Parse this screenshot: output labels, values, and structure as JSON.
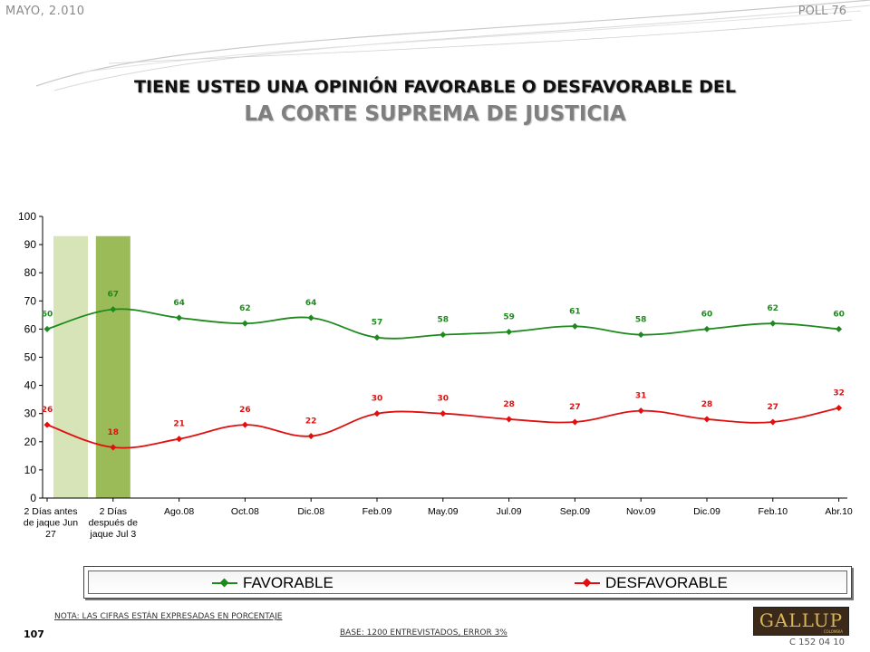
{
  "header": {
    "date": "MAYO, 2.010",
    "poll": "POLL 76"
  },
  "title": {
    "line1": "TIENE USTED UNA OPINIÓN FAVORABLE O DESFAVORABLE DEL",
    "line2": "LA CORTE SUPREMA DE JUSTICIA"
  },
  "footer": {
    "note": "NOTA: LAS CIFRAS ESTÁN EXPRESADAS EN PORCENTAJE",
    "base": "BASE: 1200 ENTREVISTADOS, ERROR 3%",
    "page_number": "107",
    "code": "C 152 04 10",
    "logo": "GALLUP",
    "logo_sub": "COLOMBIA"
  },
  "legend": {
    "favorable": "FAVORABLE",
    "desfavorable": "DESFAVORABLE"
  },
  "colors": {
    "favorable": "#1e8a1e",
    "desfavorable": "#e01010",
    "band_light": "#d6e4b8",
    "band_dark": "#9bbb59"
  },
  "chart_data": {
    "type": "line",
    "categories": [
      [
        "2 Días antes",
        "de jaque Jun",
        "27"
      ],
      [
        "2 Días",
        "después de",
        "jaque Jul 3"
      ],
      [
        "Ago.08"
      ],
      [
        "Oct.08"
      ],
      [
        "Dic.08"
      ],
      [
        "Feb.09"
      ],
      [
        "May.09"
      ],
      [
        "Jul.09"
      ],
      [
        "Sep.09"
      ],
      [
        "Nov.09"
      ],
      [
        "Dic.09"
      ],
      [
        "Feb.10"
      ],
      [
        "Abr.10"
      ]
    ],
    "series": [
      {
        "name": "FAVORABLE",
        "values": [
          60,
          67,
          64,
          62,
          64,
          57,
          58,
          59,
          61,
          58,
          60,
          62,
          60
        ]
      },
      {
        "name": "DESFAVORABLE",
        "values": [
          26,
          18,
          21,
          26,
          22,
          30,
          30,
          28,
          27,
          31,
          28,
          27,
          32
        ]
      }
    ],
    "ylim": [
      0,
      100
    ],
    "yticks": [
      0,
      10,
      20,
      30,
      40,
      50,
      60,
      70,
      80,
      90,
      100
    ],
    "highlight_bands": [
      {
        "category_index": 0,
        "style": "light",
        "value": 93
      },
      {
        "category_index": 1,
        "style": "dark",
        "value": 93
      }
    ],
    "legend_position": "bottom",
    "grid": false
  }
}
